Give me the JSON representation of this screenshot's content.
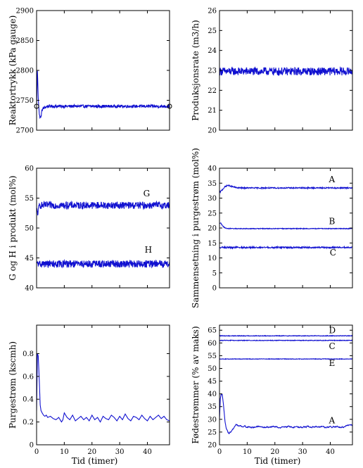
{
  "chart_data": [
    {
      "id": "reaktortrykk",
      "type": "line",
      "ylabel": "Reaktortrykk (kPa gauge)",
      "xlabel": "",
      "xlim": [
        0,
        48
      ],
      "ylim": [
        2700,
        2900
      ],
      "yticks": [
        2700,
        2750,
        2800,
        2850,
        2900
      ],
      "xticks": [
        0,
        10,
        20,
        30,
        40
      ],
      "show_xtick_labels": false,
      "series": [
        {
          "name": "",
          "base": 2740,
          "noise": 2.5,
          "smooth": false,
          "x": [
            0,
            0.3,
            0.6,
            1,
            1.5,
            2,
            3,
            4,
            6,
            48
          ],
          "y": [
            2740,
            2800,
            2755,
            2725,
            2720,
            2735,
            2738,
            2740,
            2740,
            2740
          ]
        }
      ],
      "markers": [
        {
          "x": 0,
          "y": 2740
        },
        {
          "x": 48,
          "y": 2740
        }
      ]
    },
    {
      "id": "produksjonsrate",
      "type": "line",
      "ylabel": "Produksjonsrate (m3/h)",
      "xlabel": "",
      "xlim": [
        0,
        48
      ],
      "ylim": [
        20,
        26
      ],
      "yticks": [
        20,
        21,
        22,
        23,
        24,
        25,
        26
      ],
      "xticks": [
        0,
        10,
        20,
        30,
        40
      ],
      "show_xtick_labels": false,
      "series": [
        {
          "name": "",
          "base": 22.95,
          "noise": 0.2,
          "smooth": false,
          "x": [
            0,
            48
          ],
          "y": [
            22.95,
            22.95
          ]
        }
      ]
    },
    {
      "id": "g-og-h",
      "type": "line",
      "ylabel": "G og H i produkt (mol%)",
      "xlabel": "",
      "xlim": [
        0,
        48
      ],
      "ylim": [
        40,
        60
      ],
      "yticks": [
        40,
        45,
        50,
        55,
        60
      ],
      "xticks": [
        0,
        10,
        20,
        30,
        40
      ],
      "show_xtick_labels": false,
      "series": [
        {
          "name": "G",
          "base": 53.8,
          "noise": 0.6,
          "smooth": false,
          "x": [
            0,
            0.5,
            1,
            48
          ],
          "y": [
            53,
            52.5,
            53.8,
            53.8
          ],
          "label_x": 38.5,
          "label_y": 55.3
        },
        {
          "name": "H",
          "base": 44.0,
          "noise": 0.6,
          "smooth": false,
          "x": [
            0,
            48
          ],
          "y": [
            44.0,
            44.0
          ],
          "label_x": 39,
          "label_y": 45.9
        }
      ]
    },
    {
      "id": "sammensetning",
      "type": "line",
      "ylabel": "Sammensetning i purgestrøm (mol%)",
      "xlabel": "",
      "xlim": [
        0,
        48
      ],
      "ylim": [
        0,
        40
      ],
      "yticks": [
        0,
        5,
        10,
        15,
        20,
        25,
        30,
        35,
        40
      ],
      "xticks": [
        0,
        10,
        20,
        30,
        40
      ],
      "show_xtick_labels": false,
      "series": [
        {
          "name": "A",
          "base": 33.4,
          "noise": 0.2,
          "smooth": false,
          "x": [
            0,
            1,
            2,
            3,
            4,
            6,
            8,
            48
          ],
          "y": [
            31.8,
            32.8,
            33.8,
            34.3,
            34.0,
            33.5,
            33.4,
            33.4
          ],
          "label_x": 39.5,
          "label_y": 35.3
        },
        {
          "name": "B",
          "base": 19.8,
          "noise": 0.12,
          "smooth": false,
          "x": [
            0,
            0.5,
            1,
            2,
            3,
            48
          ],
          "y": [
            21.5,
            21.8,
            20.8,
            20.0,
            19.8,
            19.8
          ],
          "label_x": 39.5,
          "label_y": 21.3
        },
        {
          "name": "C",
          "base": 13.5,
          "noise": 0.25,
          "smooth": false,
          "x": [
            0,
            48
          ],
          "y": [
            13.5,
            13.5
          ],
          "label_x": 39.8,
          "label_y": 10.8
        }
      ]
    },
    {
      "id": "purgestrom",
      "type": "line",
      "ylabel": "Purgestrøm (kscmh)",
      "xlabel": "Tid (timer)",
      "xlim": [
        0,
        48
      ],
      "ylim": [
        0,
        1.05
      ],
      "yticks": [
        0,
        0.2,
        0.4,
        0.6,
        0.8
      ],
      "ytick_labels": [
        "0",
        "0.2",
        "0.4",
        "0.6",
        "0.8"
      ],
      "xticks": [
        0,
        10,
        20,
        30,
        40
      ],
      "show_xtick_labels": true,
      "series": [
        {
          "name": "",
          "smooth": true,
          "x": [
            0,
            0.3,
            0.6,
            1,
            1.3,
            1.6,
            2,
            2.5,
            3,
            3.5,
            4,
            5,
            6,
            7,
            8,
            9,
            9.5,
            10,
            11,
            12,
            13,
            14,
            15,
            16,
            17,
            18,
            19,
            20,
            21,
            22,
            23,
            24,
            25,
            26,
            27,
            28,
            29,
            30,
            31,
            32,
            33,
            34,
            35,
            36,
            37,
            38,
            39,
            40,
            41,
            42,
            43,
            44,
            45,
            46,
            47,
            48
          ],
          "y": [
            0.3,
            0.8,
            0.78,
            0.55,
            0.35,
            0.3,
            0.28,
            0.26,
            0.25,
            0.26,
            0.24,
            0.25,
            0.23,
            0.22,
            0.24,
            0.2,
            0.22,
            0.28,
            0.24,
            0.22,
            0.26,
            0.21,
            0.23,
            0.25,
            0.22,
            0.24,
            0.21,
            0.26,
            0.22,
            0.24,
            0.2,
            0.25,
            0.23,
            0.22,
            0.26,
            0.24,
            0.21,
            0.25,
            0.22,
            0.27,
            0.23,
            0.21,
            0.25,
            0.24,
            0.22,
            0.26,
            0.23,
            0.21,
            0.25,
            0.22,
            0.24,
            0.26,
            0.23,
            0.25,
            0.22,
            0.21
          ]
        }
      ]
    },
    {
      "id": "fodestrommer",
      "type": "line",
      "ylabel": "Fødestrømmer (% av maks)",
      "xlabel": "Tid (timer)",
      "xlim": [
        0,
        48
      ],
      "ylim": [
        20,
        67
      ],
      "yticks": [
        20,
        25,
        30,
        35,
        40,
        45,
        50,
        55,
        60,
        65
      ],
      "xticks": [
        0,
        10,
        20,
        30,
        40
      ],
      "show_xtick_labels": true,
      "series": [
        {
          "name": "D",
          "base": 62.8,
          "noise": 0.12,
          "smooth": false,
          "x": [
            0,
            48
          ],
          "y": [
            62.8,
            62.8
          ],
          "label_x": 39.5,
          "label_y": 63.8
        },
        {
          "name": "C",
          "base": 61.0,
          "noise": 0.12,
          "smooth": false,
          "x": [
            0,
            48
          ],
          "y": [
            61.0,
            61.0
          ],
          "label_x": 39.5,
          "label_y": 57.6
        },
        {
          "name": "E",
          "base": 53.7,
          "noise": 0.1,
          "smooth": false,
          "x": [
            0,
            48
          ],
          "y": [
            53.7,
            53.7
          ],
          "label_x": 39.5,
          "label_y": 51.0
        },
        {
          "name": "A",
          "base": 0,
          "noise": 0.2,
          "smooth": true,
          "x": [
            0,
            0.3,
            0.6,
            1,
            1.5,
            2,
            2.5,
            3,
            3.5,
            4,
            5,
            6,
            7,
            8,
            9,
            10,
            12,
            14,
            16,
            18,
            20,
            22,
            24,
            26,
            28,
            30,
            32,
            34,
            36,
            38,
            40,
            42,
            44,
            46,
            48
          ],
          "y": [
            30,
            38,
            40,
            39.5,
            35,
            29,
            26,
            25,
            24.5,
            25,
            26.5,
            28,
            27.5,
            27,
            27.5,
            27,
            26.8,
            27.2,
            26.8,
            27,
            27.2,
            26.8,
            27,
            27.2,
            26.8,
            27,
            27.1,
            26.9,
            27.2,
            26.8,
            27,
            27.2,
            26.8,
            27.5,
            27.8
          ],
          "label_x": 39.5,
          "label_y": 28.5
        }
      ]
    }
  ]
}
